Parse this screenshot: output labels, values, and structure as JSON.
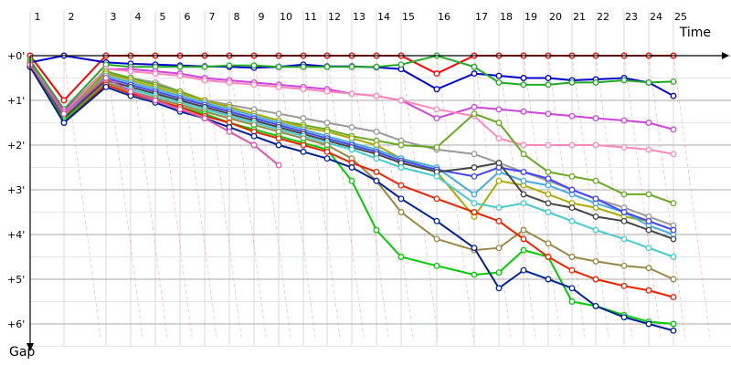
{
  "chart_data": {
    "type": "line",
    "title": "",
    "xlabel": "Time",
    "ylabel": "Gap",
    "x_ticks": [
      "1",
      "2",
      "3",
      "4",
      "5",
      "6",
      "7",
      "8",
      "9",
      "10",
      "11",
      "12",
      "13",
      "14",
      "15",
      "16",
      "17",
      "18",
      "19",
      "20",
      "21",
      "22",
      "23",
      "24",
      "25"
    ],
    "y_ticks": [
      "+0'",
      "+1'",
      "+2'",
      "+3'",
      "+4'",
      "+5'",
      "+6'"
    ],
    "ylim_minutes": [
      0,
      6.3
    ],
    "y_inverted": true,
    "grid": true,
    "legend": "none",
    "series": [
      {
        "color": "#ff0000",
        "x": [
          1,
          2,
          3,
          4,
          5,
          6,
          7,
          8,
          9,
          10,
          11,
          12,
          13,
          14,
          15,
          16,
          17,
          18,
          19,
          20,
          21,
          22,
          23,
          24,
          25
        ],
        "values": [
          0.0,
          1.0,
          0.0,
          0.0,
          0.0,
          0.0,
          0.0,
          0.0,
          0.0,
          0.0,
          0.0,
          0.0,
          0.0,
          0.0,
          0.0,
          0.4,
          0.0,
          0.0,
          0.0,
          0.0,
          0.0,
          0.0,
          0.0,
          0.0,
          0.0
        ]
      },
      {
        "color": "#0000cc",
        "x": [
          1,
          2,
          3,
          4,
          5,
          6,
          7,
          8,
          9,
          10,
          11,
          12,
          13,
          14,
          15,
          16,
          17,
          18,
          19,
          20,
          21,
          22,
          23,
          24,
          25
        ],
        "values": [
          0.15,
          0.0,
          0.15,
          0.18,
          0.2,
          0.22,
          0.24,
          0.25,
          0.27,
          0.25,
          0.2,
          0.24,
          0.24,
          0.26,
          0.3,
          0.75,
          0.4,
          0.45,
          0.5,
          0.5,
          0.55,
          0.53,
          0.5,
          0.6,
          0.9
        ]
      },
      {
        "color": "#22aa22",
        "x": [
          1,
          2,
          3,
          4,
          5,
          6,
          7,
          8,
          9,
          10,
          11,
          12,
          13,
          14,
          15,
          16,
          17,
          18,
          19,
          20,
          21,
          22,
          23,
          24,
          25
        ],
        "values": [
          0.1,
          1.2,
          0.2,
          0.25,
          0.25,
          0.25,
          0.25,
          0.22,
          0.22,
          0.25,
          0.25,
          0.25,
          0.25,
          0.25,
          0.2,
          0.0,
          0.25,
          0.6,
          0.65,
          0.65,
          0.6,
          0.6,
          0.55,
          0.6,
          0.58
        ]
      },
      {
        "color": "#cc44dd",
        "x": [
          1,
          2,
          3,
          4,
          5,
          6,
          7,
          8,
          9,
          10,
          11,
          12,
          13,
          14,
          15,
          16,
          17,
          18,
          19,
          20,
          21,
          22,
          23,
          24,
          25
        ],
        "values": [
          0.2,
          1.25,
          0.3,
          0.3,
          0.35,
          0.4,
          0.5,
          0.55,
          0.6,
          0.65,
          0.7,
          0.75,
          0.85,
          0.9,
          1.0,
          1.4,
          1.15,
          1.2,
          1.25,
          1.3,
          1.35,
          1.4,
          1.45,
          1.5,
          1.65
        ]
      },
      {
        "color": "#ff88bb",
        "x": [
          1,
          2,
          3,
          4,
          5,
          6,
          7,
          8,
          9,
          10,
          11,
          12,
          13,
          14,
          15,
          16,
          17,
          18,
          19,
          20,
          21,
          22,
          23,
          24,
          25
        ],
        "values": [
          0.2,
          1.3,
          0.3,
          0.35,
          0.4,
          0.45,
          0.55,
          0.6,
          0.65,
          0.7,
          0.75,
          0.8,
          0.85,
          0.9,
          1.0,
          1.2,
          1.35,
          1.85,
          2.0,
          2.0,
          2.0,
          2.0,
          2.05,
          2.1,
          2.2
        ]
      },
      {
        "color": "#999999",
        "x": [
          1,
          2,
          3,
          4,
          5,
          6,
          7,
          8,
          9,
          10,
          11,
          12,
          13,
          14,
          15,
          16,
          17,
          18,
          19,
          20,
          21,
          22,
          23,
          24,
          25
        ],
        "values": [
          0.2,
          1.3,
          0.4,
          0.5,
          0.6,
          0.8,
          1.0,
          1.1,
          1.2,
          1.3,
          1.4,
          1.5,
          1.6,
          1.7,
          1.9,
          2.1,
          2.2,
          2.4,
          2.6,
          2.8,
          3.0,
          3.2,
          3.4,
          3.6,
          3.8
        ]
      },
      {
        "color": "#66aa22",
        "x": [
          1,
          2,
          3,
          4,
          5,
          6,
          7,
          8,
          9,
          10,
          11,
          12,
          13,
          14,
          15,
          16,
          17,
          18,
          19,
          20,
          21,
          22,
          23,
          24,
          25
        ],
        "values": [
          0.15,
          1.35,
          0.35,
          0.5,
          0.65,
          0.8,
          1.0,
          1.15,
          1.3,
          1.45,
          1.55,
          1.65,
          1.8,
          1.9,
          2.0,
          2.05,
          1.3,
          1.5,
          2.2,
          2.6,
          2.7,
          2.8,
          3.1,
          3.1,
          3.3
        ]
      },
      {
        "color": "#aaaa00",
        "x": [
          1,
          2,
          3,
          4,
          5,
          6,
          7,
          8,
          9,
          10,
          11,
          12,
          13,
          14,
          15,
          16,
          17,
          18,
          19,
          20,
          21,
          22,
          23,
          24,
          25
        ],
        "values": [
          0.2,
          1.35,
          0.4,
          0.55,
          0.7,
          0.85,
          1.0,
          1.15,
          1.3,
          1.45,
          1.6,
          1.7,
          1.85,
          2.0,
          2.3,
          2.6,
          3.6,
          2.8,
          2.9,
          3.1,
          3.3,
          3.4,
          3.6,
          3.7,
          3.9
        ]
      },
      {
        "color": "#44aadd",
        "x": [
          1,
          2,
          3,
          4,
          5,
          6,
          7,
          8,
          9,
          10,
          11,
          12,
          13,
          14,
          15,
          16,
          17,
          18,
          19,
          20,
          21,
          22,
          23,
          24,
          25
        ],
        "values": [
          0.2,
          1.4,
          0.45,
          0.6,
          0.75,
          0.9,
          1.05,
          1.2,
          1.35,
          1.5,
          1.65,
          1.8,
          1.95,
          2.1,
          2.3,
          2.5,
          3.1,
          2.6,
          2.8,
          2.9,
          3.1,
          3.3,
          3.5,
          3.8,
          4.0
        ]
      },
      {
        "color": "#4444ff",
        "x": [
          1,
          2,
          3,
          4,
          5,
          6,
          7,
          8,
          9,
          10,
          11,
          12,
          13,
          14,
          15,
          16,
          17,
          18,
          19,
          20,
          21,
          22,
          23,
          24,
          25
        ],
        "values": [
          0.2,
          1.4,
          0.5,
          0.65,
          0.8,
          0.95,
          1.1,
          1.25,
          1.4,
          1.55,
          1.7,
          1.85,
          2.0,
          2.15,
          2.35,
          2.55,
          2.7,
          2.5,
          2.6,
          2.75,
          3.0,
          3.2,
          3.5,
          3.7,
          3.9
        ]
      },
      {
        "color": "#444444",
        "x": [
          1,
          2,
          3,
          4,
          5,
          6,
          7,
          8,
          9,
          10,
          11,
          12,
          13,
          14,
          15,
          16,
          17,
          18,
          19,
          20,
          21,
          22,
          23,
          24,
          25
        ],
        "values": [
          0.2,
          1.4,
          0.55,
          0.7,
          0.85,
          1.0,
          1.15,
          1.3,
          1.45,
          1.6,
          1.75,
          1.9,
          2.05,
          2.2,
          2.4,
          2.6,
          2.5,
          2.4,
          3.1,
          3.3,
          3.4,
          3.6,
          3.7,
          3.9,
          4.1
        ]
      },
      {
        "color": "#44cccc",
        "x": [
          1,
          2,
          3,
          4,
          5,
          6,
          7,
          8,
          9,
          10,
          11,
          12,
          13,
          14,
          15,
          16,
          17,
          18,
          19,
          20,
          21,
          22,
          23,
          24,
          25
        ],
        "values": [
          0.25,
          1.45,
          0.6,
          0.75,
          0.9,
          1.05,
          1.2,
          1.35,
          1.5,
          1.65,
          1.8,
          1.95,
          2.1,
          2.3,
          2.5,
          2.7,
          3.3,
          3.4,
          3.3,
          3.5,
          3.7,
          3.9,
          4.1,
          4.3,
          4.5
        ]
      },
      {
        "color": "#998844",
        "x": [
          1,
          2,
          3,
          4,
          5,
          6,
          7,
          8,
          9,
          10,
          11,
          12,
          13,
          14,
          15,
          16,
          17,
          18,
          19,
          20,
          21,
          22,
          23,
          24,
          25
        ],
        "values": [
          0.25,
          1.45,
          0.6,
          0.8,
          0.95,
          1.1,
          1.25,
          1.4,
          1.55,
          1.7,
          1.85,
          2.0,
          2.3,
          2.8,
          3.5,
          4.1,
          4.35,
          4.3,
          3.9,
          4.2,
          4.5,
          4.6,
          4.7,
          4.75,
          5.0
        ]
      },
      {
        "color": "#00cc00",
        "x": [
          1,
          2,
          3,
          4,
          5,
          6,
          7,
          8,
          9,
          10,
          11,
          12,
          13,
          14,
          15,
          16,
          17,
          18,
          19,
          20,
          21,
          22,
          23,
          24,
          25
        ],
        "values": [
          0.25,
          1.45,
          0.65,
          0.85,
          1.0,
          1.15,
          1.3,
          1.5,
          1.65,
          1.8,
          1.95,
          2.1,
          2.8,
          3.9,
          4.5,
          4.7,
          4.9,
          4.85,
          4.35,
          4.5,
          5.5,
          5.6,
          5.8,
          5.95,
          6.0
        ]
      },
      {
        "color": "#ee2200",
        "x": [
          1,
          2,
          3,
          4,
          5,
          6,
          7,
          8,
          9,
          10,
          11,
          12,
          13,
          14,
          15,
          16,
          17,
          18,
          19,
          20,
          21,
          22,
          23,
          24,
          25
        ],
        "values": [
          0.25,
          1.5,
          0.65,
          0.85,
          1.0,
          1.15,
          1.35,
          1.5,
          1.7,
          1.85,
          2.0,
          2.15,
          2.4,
          2.6,
          2.9,
          3.2,
          3.5,
          3.7,
          4.1,
          4.5,
          4.8,
          5.0,
          5.15,
          5.25,
          5.4
        ]
      },
      {
        "color": "#002299",
        "x": [
          1,
          2,
          3,
          4,
          5,
          6,
          7,
          8,
          9,
          10,
          11,
          12,
          13,
          14,
          15,
          16,
          17,
          18,
          19,
          20,
          21,
          22,
          23,
          24,
          25
        ],
        "values": [
          0.25,
          1.5,
          0.7,
          0.9,
          1.05,
          1.25,
          1.4,
          1.6,
          1.8,
          2.0,
          2.15,
          2.3,
          2.5,
          2.8,
          3.2,
          3.7,
          4.3,
          5.2,
          4.8,
          5.0,
          5.2,
          5.6,
          5.85,
          6.0,
          6.15
        ]
      },
      {
        "color": "#dd55aa",
        "x": [
          1,
          2,
          3,
          4,
          5,
          6,
          7,
          8,
          9,
          10
        ],
        "values": [
          0.2,
          1.3,
          0.5,
          0.8,
          1.0,
          1.2,
          1.4,
          1.7,
          2.0,
          2.45
        ]
      }
    ]
  }
}
